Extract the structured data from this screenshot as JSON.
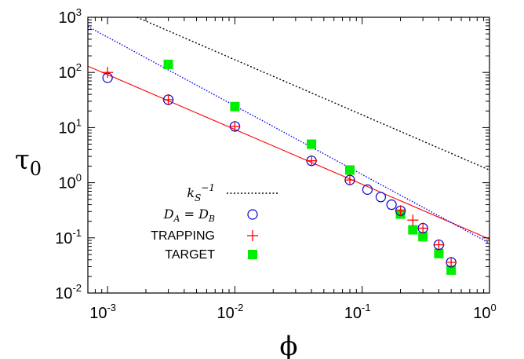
{
  "chart_data": {
    "type": "scatter",
    "xscale": "log",
    "yscale": "log",
    "xlim": [
      0.0007,
      1.0
    ],
    "ylim": [
      0.01,
      1000
    ],
    "xlabel": "ϕ",
    "ylabel_base": "τ",
    "ylabel_sub": "0",
    "xticks": [
      {
        "base": "10",
        "exp": "-3",
        "value": 0.001
      },
      {
        "base": "10",
        "exp": "-2",
        "value": 0.01
      },
      {
        "base": "10",
        "exp": "-1",
        "value": 0.1
      },
      {
        "base": "10",
        "exp": "0",
        "value": 1
      }
    ],
    "yticks": [
      {
        "base": "10",
        "exp": "-2",
        "value": 0.01
      },
      {
        "base": "10",
        "exp": "-1",
        "value": 0.1
      },
      {
        "base": "10",
        "exp": "0",
        "value": 1
      },
      {
        "base": "10",
        "exp": "1",
        "value": 10
      },
      {
        "base": "10",
        "exp": "2",
        "value": 100
      },
      {
        "base": "10",
        "exp": "3",
        "value": 1000
      }
    ],
    "legend_position": "center-left",
    "legend": [
      {
        "k": "k",
        "k_sub": "S",
        "k_sup": "−1"
      },
      {
        "lhs": "D",
        "lhs_sub": "A",
        "eq": " = ",
        "rhs": "D",
        "rhs_sub": "B"
      },
      {
        "text": "TRAPPING"
      },
      {
        "text": "TARGET"
      }
    ],
    "series": [
      {
        "key": "ks_inv",
        "style": "dotted-line",
        "color": "#000000",
        "x": [
          0.0017,
          1.0
        ],
        "y": [
          1000,
          1.7
        ]
      },
      {
        "key": "da_eq_db",
        "style": "open-circle",
        "color": "#0000cc",
        "x": [
          0.001,
          0.003,
          0.01,
          0.04,
          0.08,
          0.11,
          0.14,
          0.17,
          0.2,
          0.3,
          0.4,
          0.5
        ],
        "y": [
          80,
          32,
          10.5,
          2.5,
          1.12,
          0.75,
          0.55,
          0.4,
          0.31,
          0.15,
          0.075,
          0.036
        ]
      },
      {
        "key": "trapping",
        "style": "plus",
        "color": "#ff0000",
        "x": [
          0.001,
          0.003,
          0.01,
          0.04,
          0.08,
          0.2,
          0.25,
          0.3,
          0.4,
          0.5
        ],
        "y": [
          100,
          32,
          10.5,
          2.5,
          1.12,
          0.31,
          0.21,
          0.15,
          0.075,
          0.036
        ]
      },
      {
        "key": "target",
        "style": "filled-square",
        "color": "#00ee00",
        "x": [
          0.003,
          0.01,
          0.04,
          0.08,
          0.2,
          0.25,
          0.3,
          0.4,
          0.5
        ],
        "y": [
          140,
          24,
          5,
          1.7,
          0.27,
          0.14,
          0.105,
          0.052,
          0.026
        ]
      },
      {
        "key": "trapping_fit",
        "style": "solid-line",
        "color": "#ff0000",
        "x": [
          0.0007,
          1.0
        ],
        "y": [
          130,
          0.095
        ]
      },
      {
        "key": "da_db_fit",
        "style": "dotted-line",
        "color": "#0000ff",
        "x": [
          0.0007,
          1.0
        ],
        "y": [
          680,
          0.08
        ]
      }
    ]
  }
}
